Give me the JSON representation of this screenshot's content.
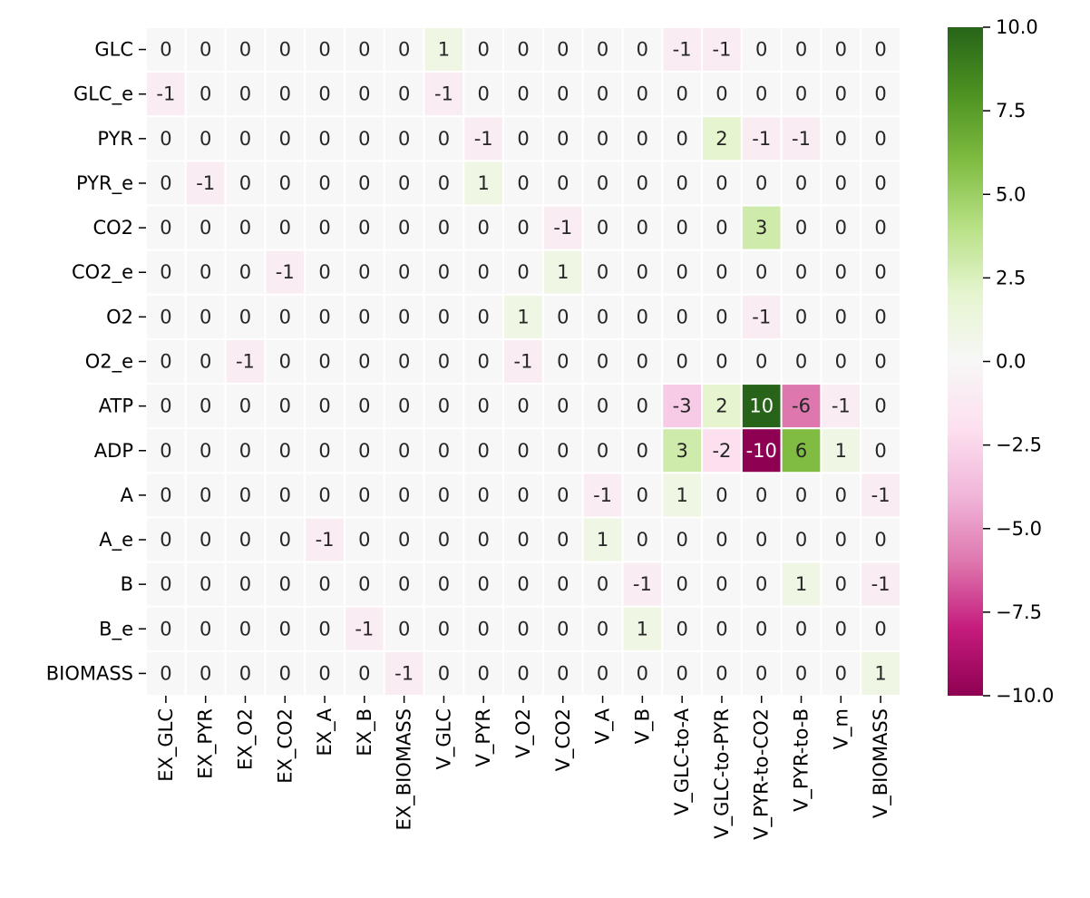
{
  "chart_data": {
    "type": "heatmap",
    "title": "",
    "xlabel": "",
    "ylabel": "",
    "x_categories": [
      "EX_GLC",
      "EX_PYR",
      "EX_O2",
      "EX_CO2",
      "EX_A",
      "EX_B",
      "EX_BIOMASS",
      "V_GLC",
      "V_PYR",
      "V_O2",
      "V_CO2",
      "V_A",
      "V_B",
      "V_GLC-to-A",
      "V_GLC-to-PYR",
      "V_PYR-to-CO2",
      "V_PYR-to-B",
      "V_m",
      "V_BIOMASS"
    ],
    "y_categories": [
      "GLC",
      "GLC_e",
      "PYR",
      "PYR_e",
      "CO2",
      "CO2_e",
      "O2",
      "O2_e",
      "ATP",
      "ADP",
      "A",
      "A_e",
      "B",
      "B_e",
      "BIOMASS"
    ],
    "values": [
      [
        0,
        0,
        0,
        0,
        0,
        0,
        0,
        1,
        0,
        0,
        0,
        0,
        0,
        -1,
        -1,
        0,
        0,
        0,
        0
      ],
      [
        -1,
        0,
        0,
        0,
        0,
        0,
        0,
        -1,
        0,
        0,
        0,
        0,
        0,
        0,
        0,
        0,
        0,
        0,
        0
      ],
      [
        0,
        0,
        0,
        0,
        0,
        0,
        0,
        0,
        -1,
        0,
        0,
        0,
        0,
        0,
        2,
        -1,
        -1,
        0,
        0
      ],
      [
        0,
        -1,
        0,
        0,
        0,
        0,
        0,
        0,
        1,
        0,
        0,
        0,
        0,
        0,
        0,
        0,
        0,
        0,
        0
      ],
      [
        0,
        0,
        0,
        0,
        0,
        0,
        0,
        0,
        0,
        0,
        -1,
        0,
        0,
        0,
        0,
        3,
        0,
        0,
        0
      ],
      [
        0,
        0,
        0,
        -1,
        0,
        0,
        0,
        0,
        0,
        0,
        1,
        0,
        0,
        0,
        0,
        0,
        0,
        0,
        0
      ],
      [
        0,
        0,
        0,
        0,
        0,
        0,
        0,
        0,
        0,
        1,
        0,
        0,
        0,
        0,
        0,
        -1,
        0,
        0,
        0
      ],
      [
        0,
        0,
        -1,
        0,
        0,
        0,
        0,
        0,
        0,
        -1,
        0,
        0,
        0,
        0,
        0,
        0,
        0,
        0,
        0
      ],
      [
        0,
        0,
        0,
        0,
        0,
        0,
        0,
        0,
        0,
        0,
        0,
        0,
        0,
        -3,
        2,
        10,
        -6,
        -1,
        0
      ],
      [
        0,
        0,
        0,
        0,
        0,
        0,
        0,
        0,
        0,
        0,
        0,
        0,
        0,
        3,
        -2,
        -10,
        6,
        1,
        0
      ],
      [
        0,
        0,
        0,
        0,
        0,
        0,
        0,
        0,
        0,
        0,
        0,
        -1,
        0,
        1,
        0,
        0,
        0,
        0,
        -1
      ],
      [
        0,
        0,
        0,
        0,
        -1,
        0,
        0,
        0,
        0,
        0,
        0,
        1,
        0,
        0,
        0,
        0,
        0,
        0,
        0
      ],
      [
        0,
        0,
        0,
        0,
        0,
        0,
        0,
        0,
        0,
        0,
        0,
        0,
        -1,
        0,
        0,
        0,
        1,
        0,
        -1
      ],
      [
        0,
        0,
        0,
        0,
        0,
        -1,
        0,
        0,
        0,
        0,
        0,
        0,
        1,
        0,
        0,
        0,
        0,
        0,
        0
      ],
      [
        0,
        0,
        0,
        0,
        0,
        0,
        -1,
        0,
        0,
        0,
        0,
        0,
        0,
        0,
        0,
        0,
        0,
        0,
        1
      ]
    ],
    "annotate": true,
    "colormap": "PiYG",
    "vmin": -10,
    "vmax": 10,
    "colorbar": {
      "ticks": [
        10,
        7.5,
        5,
        2.5,
        0,
        -2.5,
        -5,
        -7.5,
        -10
      ],
      "tick_labels": [
        "10.0",
        "7.5",
        "5.0",
        "2.5",
        "0.0",
        "−2.5",
        "−5.0",
        "−7.5",
        "−10.0"
      ]
    },
    "cell_gridlines": "white"
  }
}
